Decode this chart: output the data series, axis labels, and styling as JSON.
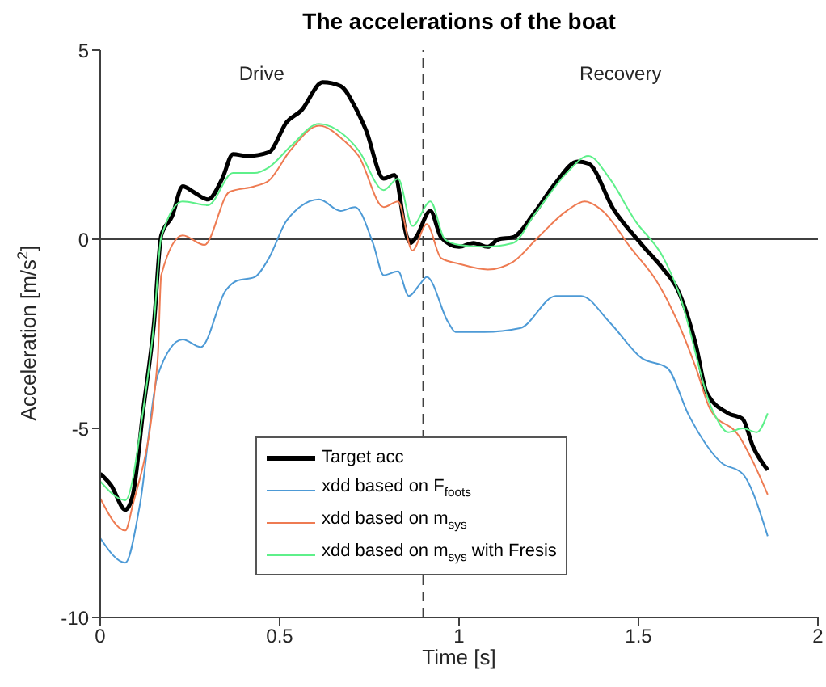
{
  "chart_data": {
    "type": "line",
    "title": "The accelerations of the boat",
    "xlabel": "Time [s]",
    "ylabel": "Acceleration [m/s$^{2}$]",
    "xlim": [
      0,
      2
    ],
    "xticks": [
      0,
      0.5,
      1,
      1.5,
      2
    ],
    "ylim": [
      -10,
      5
    ],
    "yticks": [
      -10,
      -5,
      0,
      5
    ],
    "grid": false,
    "legend": "bottom",
    "marker": "none",
    "line_style": "solid",
    "ref_lines": [
      {
        "axis": "y",
        "value": 0,
        "color": "#404040",
        "line_style": "solid"
      },
      {
        "axis": "x",
        "value": 0.9,
        "color": "#404040",
        "line_style": "dashed"
      }
    ],
    "annotations": [
      "Drive",
      "Recovery"
    ],
    "series": [
      {
        "name": "Target acc",
        "color": "#000000",
        "x": [
          0,
          0.03,
          0.07,
          0.09,
          0.12,
          0.15,
          0.17,
          0.2,
          0.23,
          0.26,
          0.3,
          0.34,
          0.37,
          0.41,
          0.47,
          0.52,
          0.56,
          0.62,
          0.67,
          0.71,
          0.74,
          0.79,
          0.82,
          0.855,
          0.865,
          0.88,
          0.92,
          0.95,
          1.0,
          1.04,
          1.08,
          1.11,
          1.15,
          1.21,
          1.27,
          1.33,
          1.36,
          1.43,
          1.51,
          1.57,
          1.61,
          1.66,
          1.69,
          1.75,
          1.79,
          1.82,
          1.86
        ],
        "values": [
          -6.2,
          -6.5,
          -7.15,
          -6.8,
          -4.5,
          -2.2,
          0.1,
          0.6,
          1.4,
          1.25,
          1.05,
          1.6,
          2.25,
          2.2,
          2.3,
          3.1,
          3.4,
          4.15,
          4.05,
          3.5,
          2.9,
          1.6,
          1.7,
          0.05,
          -0.1,
          0.05,
          0.75,
          0.05,
          -0.2,
          -0.1,
          -0.2,
          0,
          0.05,
          0.7,
          1.5,
          2.05,
          2.0,
          0.8,
          -0.15,
          -0.8,
          -1.35,
          -2.8,
          -4.05,
          -4.6,
          -4.75,
          -5.5,
          -6.1
        ]
      },
      {
        "name": "xdd based on F$_{foots}$",
        "color": "#4d9ad6",
        "x": [
          0,
          0.07,
          0.11,
          0.16,
          0.23,
          0.28,
          0.35,
          0.38,
          0.43,
          0.47,
          0.52,
          0.61,
          0.67,
          0.71,
          0.76,
          0.79,
          0.83,
          0.86,
          0.89,
          0.91,
          0.97,
          0.99,
          1.07,
          1.17,
          1.27,
          1.34,
          1.42,
          1.51,
          1.58,
          1.64,
          1.73,
          1.79,
          1.86
        ],
        "values": [
          -7.9,
          -8.55,
          -7.05,
          -3.6,
          -2.65,
          -2.85,
          -1.35,
          -1.1,
          -1.0,
          -0.5,
          0.5,
          1.05,
          0.75,
          0.85,
          -0.1,
          -0.95,
          -0.85,
          -1.5,
          -1.2,
          -1.0,
          -2.2,
          -2.45,
          -2.45,
          -2.35,
          -1.5,
          -1.5,
          -2.2,
          -3.15,
          -3.4,
          -4.65,
          -5.9,
          -6.2,
          -7.85
        ]
      },
      {
        "name": "xdd based on m$_{sys}$",
        "color": "#ee7b52",
        "x": [
          0,
          0.07,
          0.09,
          0.16,
          0.17,
          0.23,
          0.29,
          0.36,
          0.43,
          0.47,
          0.53,
          0.61,
          0.68,
          0.72,
          0.79,
          0.83,
          0.87,
          0.91,
          0.95,
          1.0,
          1.08,
          1.15,
          1.22,
          1.3,
          1.35,
          1.4,
          1.48,
          1.55,
          1.61,
          1.66,
          1.7,
          1.78,
          1.82,
          1.86
        ],
        "values": [
          -6.85,
          -7.7,
          -7.05,
          -3.2,
          -0.95,
          0.1,
          -0.15,
          1.25,
          1.4,
          1.55,
          2.35,
          3.0,
          2.6,
          2.2,
          0.85,
          1.0,
          -0.3,
          0.4,
          -0.5,
          -0.65,
          -0.8,
          -0.6,
          0.05,
          0.75,
          1.0,
          0.75,
          -0.25,
          -1.1,
          -2.2,
          -3.4,
          -4.5,
          -5.2,
          -5.9,
          -6.75
        ]
      },
      {
        "name": "xdd based on m$_{sys}$ with Fresis",
        "color": "#5ef08a",
        "x": [
          0,
          0.07,
          0.12,
          0.15,
          0.17,
          0.23,
          0.3,
          0.37,
          0.43,
          0.47,
          0.53,
          0.61,
          0.68,
          0.72,
          0.79,
          0.83,
          0.87,
          0.92,
          0.96,
          1.0,
          1.07,
          1.15,
          1.21,
          1.3,
          1.36,
          1.42,
          1.49,
          1.57,
          1.61,
          1.71,
          1.75,
          1.79,
          1.83,
          1.86
        ],
        "values": [
          -6.4,
          -6.9,
          -4.5,
          -2.2,
          0.05,
          1.0,
          0.9,
          1.75,
          1.75,
          1.9,
          2.45,
          3.05,
          2.75,
          2.35,
          1.3,
          1.6,
          0.35,
          1.0,
          0,
          -0.15,
          -0.2,
          -0.1,
          0.65,
          1.75,
          2.2,
          1.6,
          0.5,
          -0.5,
          -1.35,
          -4.6,
          -5.1,
          -5.0,
          -5.1,
          -4.6
        ]
      }
    ]
  }
}
